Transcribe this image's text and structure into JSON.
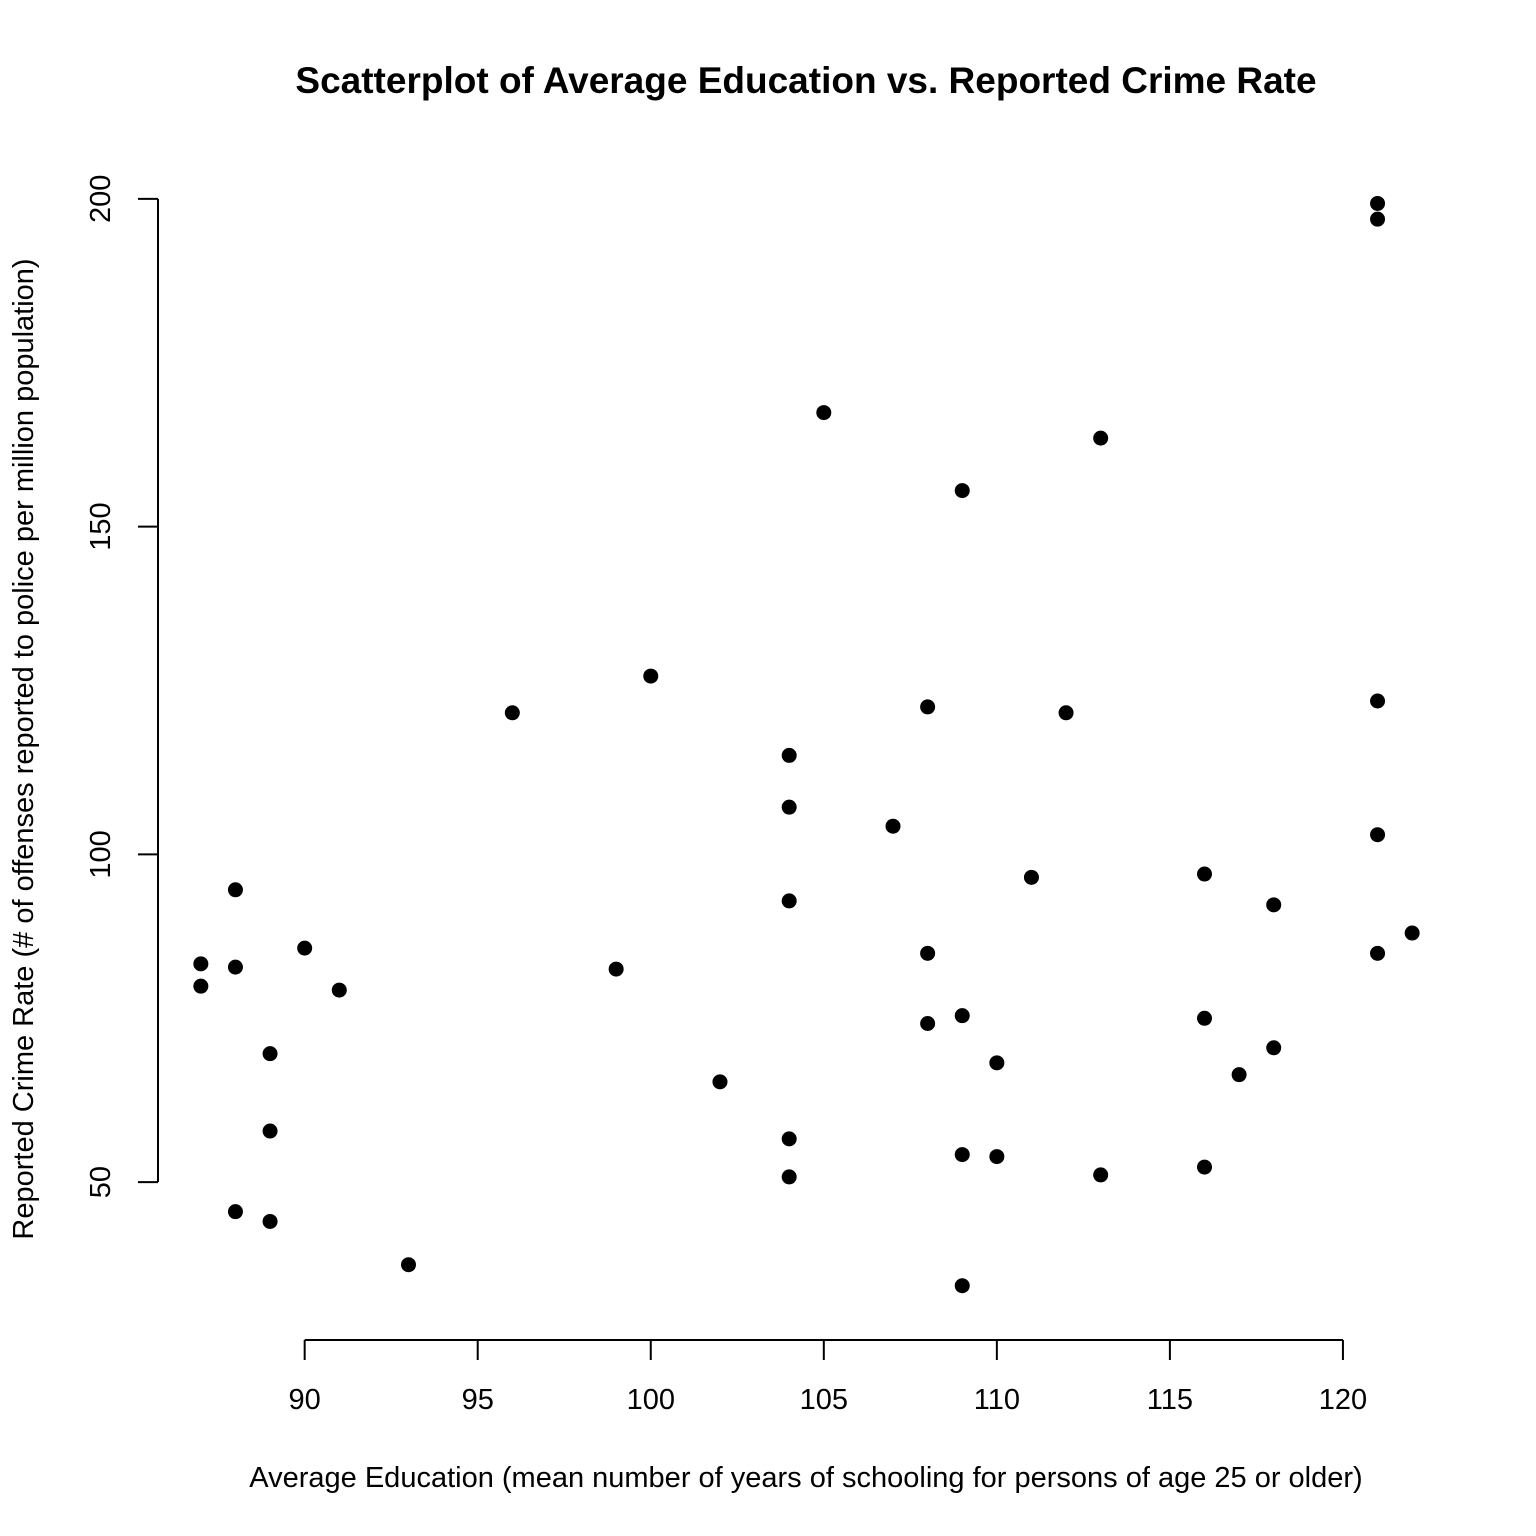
{
  "chart_data": {
    "type": "scatter",
    "title": "Scatterplot of Average Education vs. Reported Crime Rate",
    "xlabel": "Average Education (mean number of years of schooling for persons of age 25 or older)",
    "ylabel": "Reported Crime Rate (# of offenses reported to police per million population)",
    "xlim": [
      86.6,
      122.4
    ],
    "ylim": [
      30.8,
      201.2
    ],
    "x_ticks": [
      90,
      95,
      100,
      105,
      110,
      115,
      120
    ],
    "y_ticks": [
      50,
      100,
      150,
      200
    ],
    "grid": false,
    "color": "#000000",
    "points": [
      {
        "x": 121,
        "y": 199.3
      },
      {
        "x": 121,
        "y": 196.9
      },
      {
        "x": 105,
        "y": 167.4
      },
      {
        "x": 113,
        "y": 163.5
      },
      {
        "x": 109,
        "y": 155.5
      },
      {
        "x": 100,
        "y": 127.2
      },
      {
        "x": 121,
        "y": 123.4
      },
      {
        "x": 108,
        "y": 122.5
      },
      {
        "x": 96,
        "y": 121.6
      },
      {
        "x": 112,
        "y": 121.6
      },
      {
        "x": 104,
        "y": 115.1
      },
      {
        "x": 104,
        "y": 107.2
      },
      {
        "x": 107,
        "y": 104.3
      },
      {
        "x": 121,
        "y": 103.0
      },
      {
        "x": 116,
        "y": 97.0
      },
      {
        "x": 111,
        "y": 96.5
      },
      {
        "x": 88,
        "y": 94.6
      },
      {
        "x": 104,
        "y": 92.9
      },
      {
        "x": 118,
        "y": 92.3
      },
      {
        "x": 122,
        "y": 88.0
      },
      {
        "x": 90,
        "y": 85.7
      },
      {
        "x": 108,
        "y": 84.9
      },
      {
        "x": 121,
        "y": 84.9
      },
      {
        "x": 87,
        "y": 83.3
      },
      {
        "x": 88,
        "y": 82.8
      },
      {
        "x": 99,
        "y": 82.5
      },
      {
        "x": 87,
        "y": 79.9
      },
      {
        "x": 91,
        "y": 79.3
      },
      {
        "x": 109,
        "y": 75.4
      },
      {
        "x": 116,
        "y": 75.0
      },
      {
        "x": 108,
        "y": 74.2
      },
      {
        "x": 118,
        "y": 70.5
      },
      {
        "x": 89,
        "y": 69.6
      },
      {
        "x": 110,
        "y": 68.2
      },
      {
        "x": 117,
        "y": 66.4
      },
      {
        "x": 102,
        "y": 65.3
      },
      {
        "x": 89,
        "y": 57.8
      },
      {
        "x": 104,
        "y": 56.6
      },
      {
        "x": 109,
        "y": 54.2
      },
      {
        "x": 110,
        "y": 53.9
      },
      {
        "x": 116,
        "y": 52.3
      },
      {
        "x": 113,
        "y": 51.1
      },
      {
        "x": 104,
        "y": 50.8
      },
      {
        "x": 88,
        "y": 45.5
      },
      {
        "x": 89,
        "y": 44.0
      },
      {
        "x": 93,
        "y": 37.4
      },
      {
        "x": 109,
        "y": 34.2
      }
    ]
  }
}
